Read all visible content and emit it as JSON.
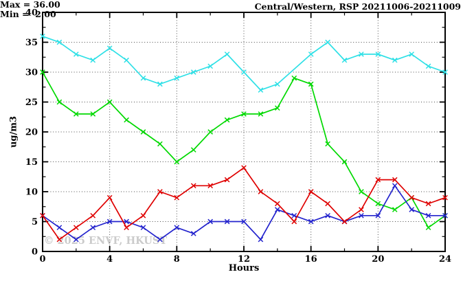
{
  "title": "Central/Western, RSP 20211006-20211009",
  "stats": {
    "max_label": "Max = 36.00",
    "min_label": "Min =  2.00"
  },
  "watermark": "© 2025 ENVF, HKUST",
  "chart_data": {
    "type": "line",
    "title": "Central/Western, RSP 20211006-20211009",
    "xlabel": "Hours",
    "ylabel": "ug/m3",
    "xlim": [
      0,
      24
    ],
    "ylim": [
      0,
      40
    ],
    "grid": "dotted lines at major ticks, on",
    "legend_position": "none",
    "annotations": [
      "Max = 36.00",
      "Min =  2.00"
    ],
    "x_major_ticks": [
      0,
      4,
      8,
      12,
      16,
      20,
      24
    ],
    "x_minor_ticks": [
      2,
      6,
      10,
      14,
      18,
      22
    ],
    "y_major_ticks": [
      0,
      5,
      10,
      15,
      20,
      25,
      30,
      35,
      40
    ],
    "y_minor_ticks": [
      2.5,
      7.5,
      12.5,
      17.5,
      22.5,
      27.5,
      32.5,
      37.5
    ],
    "x_gridlines": [
      4,
      8,
      12,
      16,
      20
    ],
    "y_gridlines": [
      5,
      10,
      15,
      20,
      25,
      30,
      35
    ],
    "marker": "x-cross",
    "x": [
      0,
      1,
      2,
      3,
      4,
      5,
      6,
      7,
      8,
      9,
      10,
      11,
      12,
      13,
      14,
      15,
      16,
      17,
      18,
      19,
      20,
      21,
      22,
      23,
      24
    ],
    "series": [
      {
        "name": "cyan-line",
        "color": "#2ee0e6",
        "values": [
          36,
          35,
          33,
          32,
          34,
          32,
          29,
          28,
          29,
          30,
          31,
          33,
          30,
          27,
          28,
          null,
          33,
          35,
          32,
          33,
          33,
          32,
          33,
          31,
          30
        ]
      },
      {
        "name": "green-line",
        "color": "#00d900",
        "values": [
          30,
          25,
          23,
          23,
          25,
          22,
          20,
          18,
          15,
          17,
          20,
          22,
          23,
          23,
          24,
          29,
          28,
          18,
          15,
          10,
          8,
          7,
          9,
          4,
          6
        ]
      },
      {
        "name": "blue-line",
        "color": "#2323cd",
        "values": [
          6,
          4,
          2,
          4,
          5,
          5,
          4,
          2,
          4,
          3,
          5,
          5,
          5,
          2,
          7,
          6,
          5,
          6,
          5,
          6,
          6,
          11,
          7,
          6,
          6
        ]
      },
      {
        "name": "red-line",
        "color": "#df0000",
        "values": [
          6,
          2,
          4,
          6,
          9,
          4,
          6,
          10,
          9,
          11,
          11,
          12,
          14,
          10,
          8,
          5,
          10,
          8,
          5,
          7,
          12,
          12,
          9,
          8,
          9
        ]
      }
    ]
  }
}
